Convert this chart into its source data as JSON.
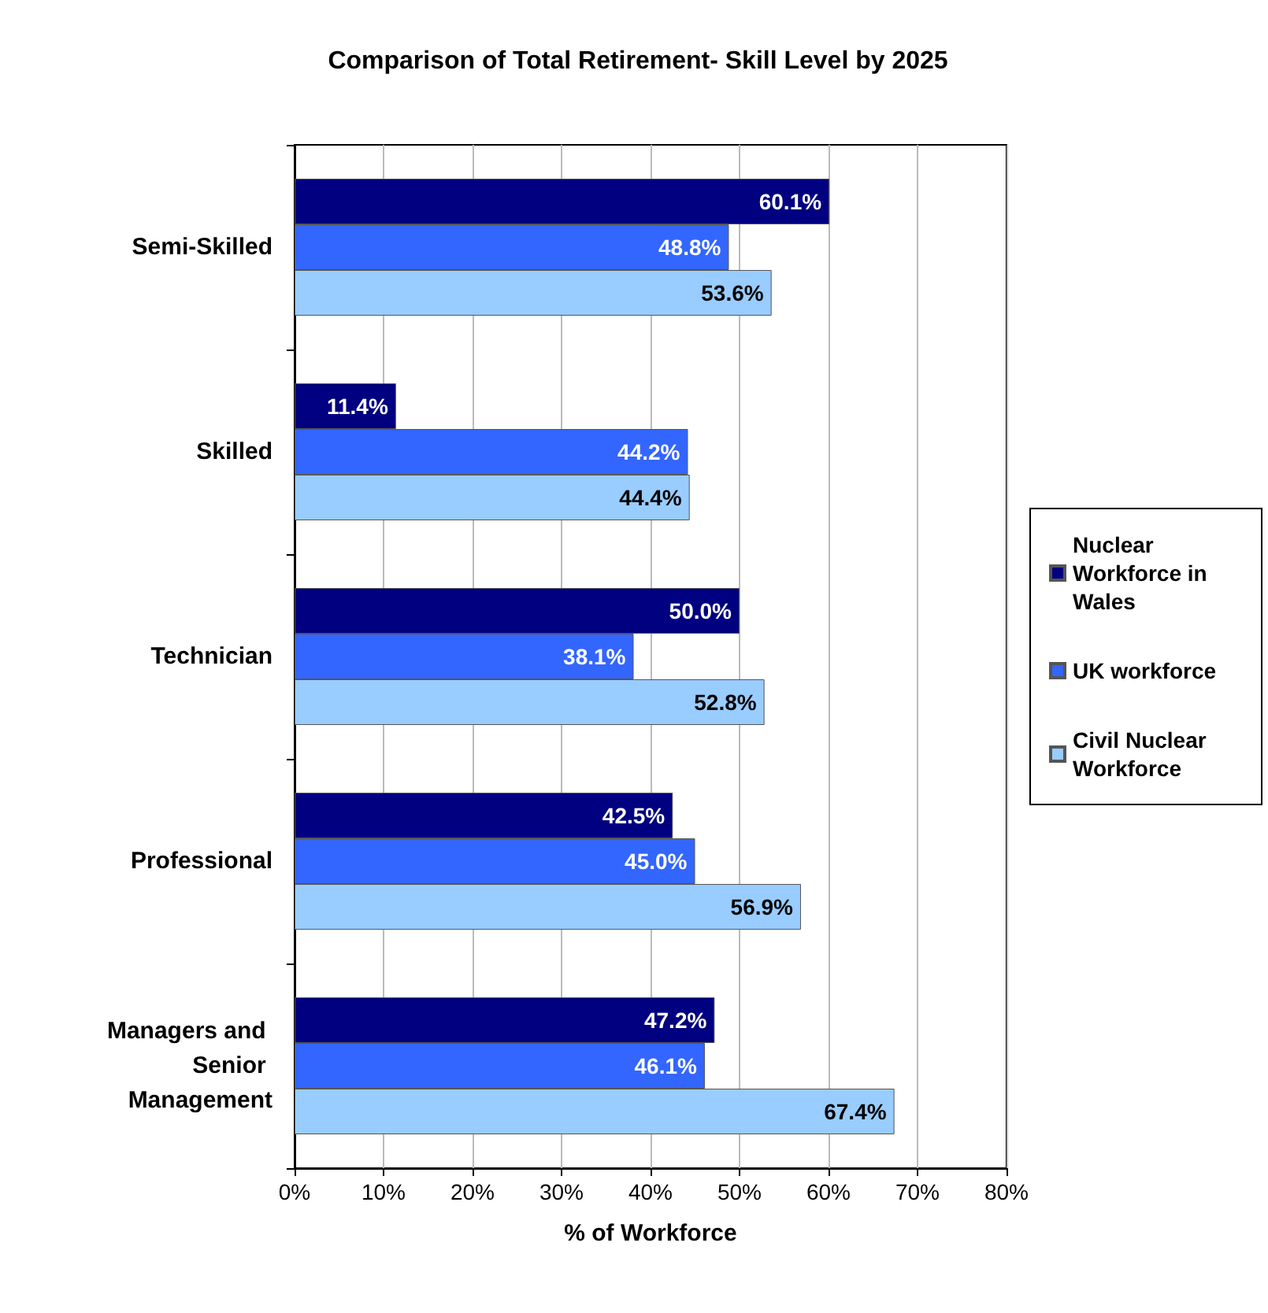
{
  "chart_data": {
    "type": "bar",
    "orientation": "horizontal",
    "title": "Comparison of Total Retirement- Skill Level by 2025",
    "xlabel": "% of Workforce",
    "categories": [
      "Semi-Skilled",
      "Skilled",
      "Technician",
      "Professional",
      "Managers and Senior Management"
    ],
    "series": [
      {
        "name": "Nuclear Workforce in Wales",
        "color": "#000080",
        "values": [
          60.1,
          11.4,
          50.0,
          42.5,
          47.2
        ],
        "value_labels": [
          "60.1%",
          "11.4%",
          "50.0%",
          "42.5%",
          "47.2%"
        ]
      },
      {
        "name": "UK workforce",
        "color": "#3366ff",
        "values": [
          48.8,
          44.2,
          38.1,
          45.0,
          46.1
        ],
        "value_labels": [
          "48.8%",
          "44.2%",
          "38.1%",
          "45.0%",
          "46.1%"
        ]
      },
      {
        "name": "Civil Nuclear Workforce",
        "color": "#99ccff",
        "values": [
          53.6,
          44.4,
          52.8,
          56.9,
          67.4
        ],
        "value_labels": [
          "53.6%",
          "44.4%",
          "52.8%",
          "56.9%",
          "67.4%"
        ]
      }
    ],
    "xlim": [
      0,
      80
    ],
    "xticks": [
      {
        "value": 0,
        "label": "0%"
      },
      {
        "value": 10,
        "label": "10%"
      },
      {
        "value": 20,
        "label": "20%"
      },
      {
        "value": 30,
        "label": "30%"
      },
      {
        "value": 40,
        "label": "40%"
      },
      {
        "value": 50,
        "label": "50%"
      },
      {
        "value": 60,
        "label": "60%"
      },
      {
        "value": 70,
        "label": "70%"
      },
      {
        "value": 80,
        "label": "80%"
      }
    ],
    "grid": "x",
    "legend": "right"
  }
}
